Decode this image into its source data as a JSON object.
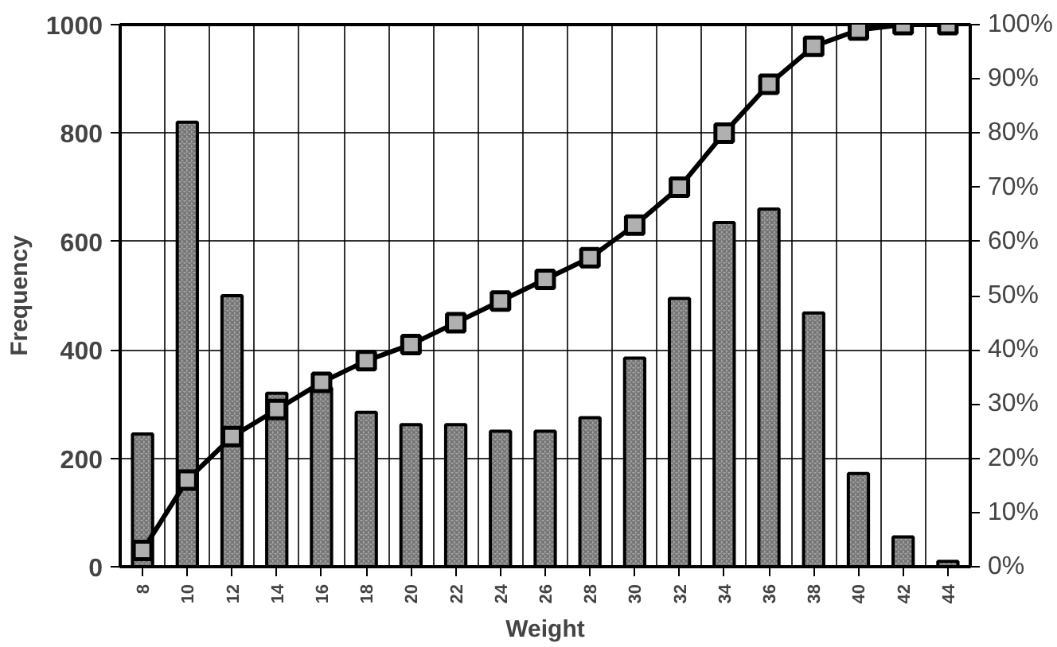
{
  "chart_data": {
    "type": "bar",
    "xlabel": "Weight",
    "ylabel": "Frequency",
    "categories": [
      "8",
      "10",
      "12",
      "14",
      "16",
      "18",
      "20",
      "22",
      "24",
      "26",
      "28",
      "30",
      "32",
      "34",
      "36",
      "38",
      "40",
      "42",
      "44"
    ],
    "ylim": [
      0,
      1000
    ],
    "yticks": [
      0,
      200,
      400,
      600,
      800,
      1000
    ],
    "y2lim": [
      0,
      100
    ],
    "y2ticks": [
      {
        "value": 0,
        "label": "0%"
      },
      {
        "value": 10,
        "label": "10%"
      },
      {
        "value": 20,
        "label": "20%"
      },
      {
        "value": 30,
        "label": "30%"
      },
      {
        "value": 40,
        "label": "40%"
      },
      {
        "value": 50,
        "label": "50%"
      },
      {
        "value": 60,
        "label": "60%"
      },
      {
        "value": 70,
        "label": "70%"
      },
      {
        "value": 80,
        "label": "80%"
      },
      {
        "value": 90,
        "label": "90%"
      },
      {
        "value": 100,
        "label": "100%"
      }
    ],
    "grid": true,
    "series": [
      {
        "color": "#a0a0a0",
        "values": [
          245,
          820,
          500,
          320,
          330,
          285,
          262,
          262,
          250,
          250,
          275,
          385,
          495,
          635,
          660,
          468,
          172,
          55,
          10
        ]
      },
      {
        "type": "line",
        "axis": "y2",
        "color": "#000000",
        "marker": "square",
        "line_style": "solid",
        "values": [
          3,
          16,
          24,
          29,
          34,
          38,
          41,
          45,
          49,
          53,
          57,
          63,
          70,
          80,
          89,
          96,
          99,
          100,
          100
        ]
      }
    ]
  }
}
